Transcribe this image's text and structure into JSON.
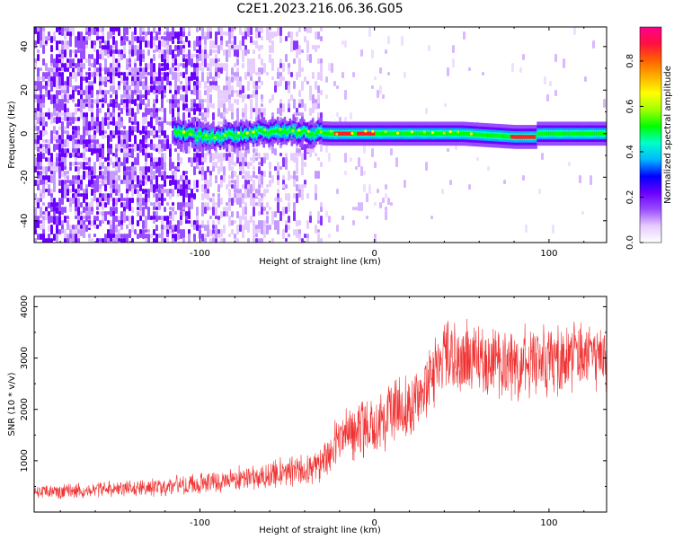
{
  "figure": {
    "title": "C2E1.2023.216.06.36.G05"
  },
  "chart_data": [
    {
      "type": "heatmap",
      "xlabel": "Height of straight line (km)",
      "ylabel": "Frequency (Hz)",
      "xlim": [
        -195,
        133
      ],
      "ylim": [
        -50,
        49
      ],
      "xticks": [
        -100,
        0,
        100
      ],
      "xtick_labels": [
        "-100",
        "0",
        "100"
      ],
      "yticks": [
        -40,
        -20,
        0,
        20,
        40
      ],
      "ytick_labels": [
        "-40",
        "-20",
        "0",
        "20",
        "40"
      ],
      "grid": false,
      "colorbar": {
        "label": "Normalized spectral amplitude",
        "range": [
          0,
          0.95
        ],
        "ticks": [
          0.0,
          0.2,
          0.4,
          0.6,
          0.8
        ],
        "tick_labels": [
          "0.0",
          "0.2",
          "0.4",
          "0.6",
          "0.8"
        ],
        "colormap": "gist_rainbow_r",
        "stops": [
          "#ffffff",
          "#e6ccff",
          "#9a4dff",
          "#6a00ff",
          "#0000ff",
          "#00b7ff",
          "#00ffcc",
          "#00ff00",
          "#a0ff00",
          "#ffff00",
          "#ffb000",
          "#ff6000",
          "#ff1040",
          "#ff0090"
        ]
      },
      "ridge": {
        "description": "narrowband signal near 0 Hz",
        "x_start": -115,
        "x_end": 133,
        "centerline_hz": [
          {
            "x": -115,
            "y": 1.0
          },
          {
            "x": -95,
            "y": -2.0
          },
          {
            "x": -75,
            "y": 0.0
          },
          {
            "x": -55,
            "y": 1.5
          },
          {
            "x": -40,
            "y": 0.5
          },
          {
            "x": -25,
            "y": 0.0
          },
          {
            "x": 0,
            "y": 0.0
          },
          {
            "x": 50,
            "y": 0.0
          },
          {
            "x": 80,
            "y": -1.5
          },
          {
            "x": 92,
            "y": -1.5
          },
          {
            "x": 93,
            "y": 0.0
          },
          {
            "x": 133,
            "y": 0.0
          }
        ],
        "peak_segments_km": [
          [
            -23,
            -13
          ],
          [
            -10,
            0
          ],
          [
            78,
            92
          ]
        ]
      }
    },
    {
      "type": "line",
      "xlabel": "Height of straight line (km)",
      "ylabel": "SNR (10 * v/v)",
      "xlim": [
        -195,
        133
      ],
      "ylim": [
        0,
        4200
      ],
      "xticks": [
        -100,
        0,
        100
      ],
      "xtick_labels": [
        "-100",
        "0",
        "100"
      ],
      "yticks": [
        1000,
        2000,
        3000,
        4000
      ],
      "ytick_labels": [
        "1000",
        "2000",
        "3000",
        "4000"
      ],
      "grid": false,
      "series": [
        {
          "color": "#f03232",
          "x": [
            -195,
            -180,
            -160,
            -140,
            -120,
            -100,
            -80,
            -60,
            -40,
            -30,
            -20,
            -10,
            0,
            10,
            20,
            30,
            40,
            50,
            60,
            70,
            80,
            90,
            100,
            110,
            120,
            133
          ],
          "mean": [
            380,
            400,
            420,
            460,
            500,
            560,
            640,
            720,
            820,
            900,
            1500,
            1600,
            1800,
            1900,
            2100,
            2400,
            3000,
            3000,
            2950,
            2900,
            2900,
            2950,
            2950,
            3000,
            3050,
            3050
          ],
          "spread": [
            130,
            140,
            150,
            160,
            180,
            200,
            220,
            260,
            320,
            400,
            500,
            550,
            600,
            600,
            600,
            650,
            700,
            700,
            650,
            650,
            650,
            650,
            650,
            650,
            650,
            650
          ]
        }
      ]
    }
  ]
}
